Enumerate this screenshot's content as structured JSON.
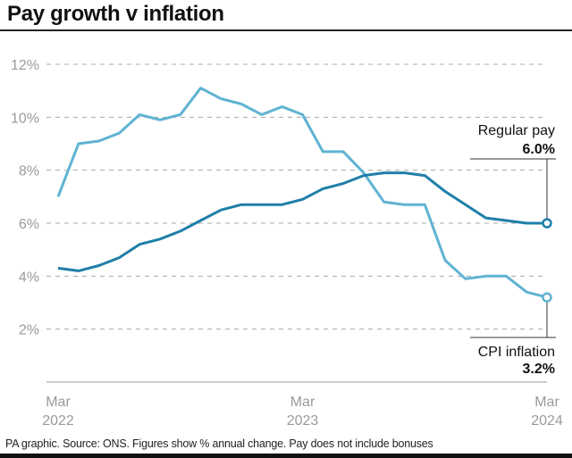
{
  "title": "Pay growth v inflation",
  "footer": "PA graphic. Source: ONS. Figures show % annual change. Pay does not include bonuses",
  "colors": {
    "regular_pay": "#1f7fa8",
    "cpi_inflation": "#5fb3d1",
    "grid": "#a8a8a8",
    "axis": "#999999",
    "annotation_line": "#333333"
  },
  "chart_data": {
    "type": "line",
    "title": "Pay growth v inflation",
    "xlabel": "",
    "ylabel": "% annual change",
    "ylim": [
      0,
      12
    ],
    "yticks": [
      2,
      4,
      6,
      8,
      10,
      12
    ],
    "ytick_labels": [
      "2%",
      "4%",
      "6%",
      "8%",
      "10%",
      "12%"
    ],
    "grid": true,
    "x_tick_labels": [
      {
        "index": 0,
        "line1": "Mar",
        "line2": "2022"
      },
      {
        "index": 12,
        "line1": "Mar",
        "line2": "2023"
      },
      {
        "index": 24,
        "line1": "Mar",
        "line2": "2024"
      }
    ],
    "x": [
      "Mar 2022",
      "Apr 2022",
      "May 2022",
      "Jun 2022",
      "Jul 2022",
      "Aug 2022",
      "Sep 2022",
      "Oct 2022",
      "Nov 2022",
      "Dec 2022",
      "Jan 2023",
      "Feb 2023",
      "Mar 2023",
      "Apr 2023",
      "May 2023",
      "Jun 2023",
      "Jul 2023",
      "Aug 2023",
      "Sep 2023",
      "Oct 2023",
      "Nov 2023",
      "Dec 2023",
      "Jan 2024",
      "Feb 2024",
      "Mar 2024"
    ],
    "series": [
      {
        "name": "CPI inflation",
        "key": "cpi_inflation",
        "values": [
          7.0,
          9.0,
          9.1,
          9.4,
          10.1,
          9.9,
          10.1,
          11.1,
          10.7,
          10.5,
          10.1,
          10.4,
          10.1,
          8.7,
          8.7,
          7.9,
          6.8,
          6.7,
          6.7,
          4.6,
          3.9,
          4.0,
          4.0,
          3.4,
          3.2
        ],
        "end_label": "CPI inflation",
        "end_value_label": "3.2%"
      },
      {
        "name": "Regular pay",
        "key": "regular_pay",
        "values": [
          4.3,
          4.2,
          4.4,
          4.7,
          5.2,
          5.4,
          5.7,
          6.1,
          6.5,
          6.7,
          6.7,
          6.7,
          6.9,
          7.3,
          7.5,
          7.8,
          7.9,
          7.9,
          7.8,
          7.2,
          6.7,
          6.2,
          6.1,
          6.0,
          6.0
        ],
        "end_label": "Regular pay",
        "end_value_label": "6.0%"
      }
    ]
  }
}
